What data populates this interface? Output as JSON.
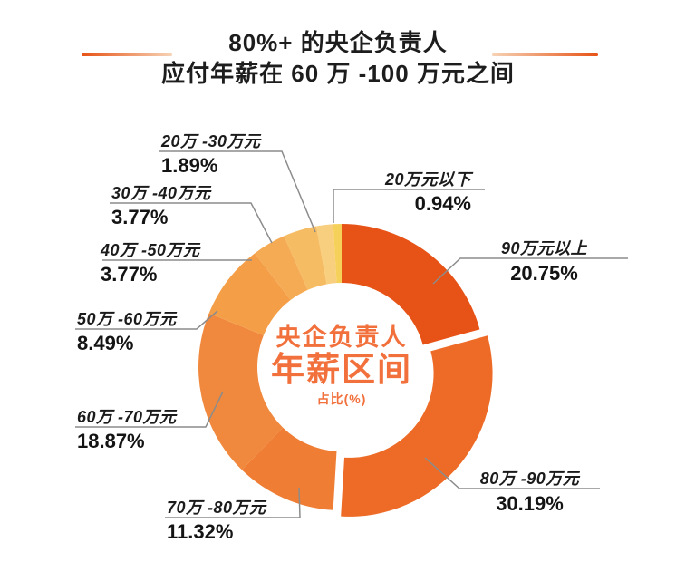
{
  "title": {
    "line1": "80%+ 的央企负责人",
    "line2": "应付年薪在 60 万 -100 万元之间"
  },
  "center": {
    "line1": "央企负责人",
    "line2": "年薪区间",
    "line3": "占比(%)"
  },
  "colors": {
    "accent": "#e75316",
    "center_text": "#f1703c",
    "title_text": "#1d1d1d",
    "leader_line": "#8c8c8c"
  },
  "chart_data": {
    "type": "pie",
    "donut": true,
    "title": "央企负责人年薪区间占比(%)",
    "start_angle_deg": 0,
    "direction": "clockwise",
    "categories": [
      "90万元以上",
      "80万 -90万元",
      "70万 -80万元",
      "60万 -70万元",
      "50万 -60万元",
      "40万 -50万元",
      "30万 -40万元",
      "20万 -30万元",
      "20万元以下"
    ],
    "values": [
      20.75,
      30.19,
      11.32,
      18.87,
      8.49,
      3.77,
      3.77,
      1.89,
      0.94
    ],
    "value_labels": [
      "20.75%",
      "30.19%",
      "11.32%",
      "18.87%",
      "8.49%",
      "3.77%",
      "3.77%",
      "1.89%",
      "0.94%"
    ],
    "colors": [
      "#e75316",
      "#ed6b26",
      "#ef7d33",
      "#f0893d",
      "#f49f48",
      "#f5ab53",
      "#f6bc64",
      "#f8cf7e",
      "#f6d159"
    ],
    "exploded_index": 1,
    "legend": "none"
  }
}
